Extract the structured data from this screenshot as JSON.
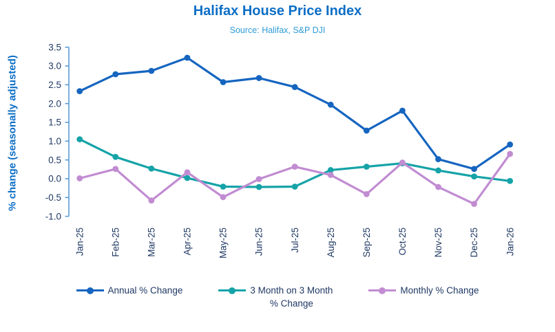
{
  "chart_data": {
    "type": "line",
    "title": "Halifax House Price Index",
    "subtitle": "Source: Halifax,  S&P DJI",
    "ylabel": "% change (seasonally adjusted)",
    "xlabel": "",
    "ylim": [
      -1.0,
      3.5
    ],
    "ytick_step": 0.5,
    "ytick_labels": [
      "3.5",
      "3.0",
      "2.5",
      "2.0",
      "1.5",
      "1.0",
      "0.5",
      "0.0",
      "-0.5",
      "-1.0"
    ],
    "grid": "off",
    "legend_position": "bottom",
    "categories": [
      "Jan-25",
      "Feb-25",
      "Mar-25",
      "Apr-25",
      "May-25",
      "Jun-25",
      "Jul-25",
      "Aug-25",
      "Sep-25",
      "Oct-25",
      "Nov-25",
      "Dec-25",
      "Jan-26"
    ],
    "series": [
      {
        "name": "Annual % Change",
        "legend_lines": [
          "Annual % Change"
        ],
        "color": "#1565c0",
        "values": [
          2.33,
          2.78,
          2.87,
          3.22,
          2.57,
          2.68,
          2.44,
          1.97,
          1.28,
          1.81,
          0.52,
          0.26,
          0.91
        ]
      },
      {
        "name": "3 Month on 3 Month % Change",
        "legend_lines": [
          "3 Month on 3 Month",
          "% Change"
        ],
        "color": "#15a3a8",
        "values": [
          1.05,
          0.58,
          0.27,
          0.02,
          -0.21,
          -0.22,
          -0.21,
          0.23,
          0.32,
          0.41,
          0.22,
          0.06,
          -0.06
        ]
      },
      {
        "name": "Monthly % Change",
        "legend_lines": [
          "Monthly % Change"
        ],
        "color": "#c18cd2",
        "values": [
          0.01,
          0.26,
          -0.58,
          0.17,
          -0.49,
          -0.01,
          0.32,
          0.1,
          -0.41,
          0.43,
          -0.22,
          -0.67,
          0.66
        ]
      }
    ],
    "colors": {
      "title": "#0c6ec6",
      "subtitle": "#2e9ad6",
      "axis_line": "#5b9bd5",
      "tick_label": "#1f3864",
      "legend_text": "#1f3864"
    }
  }
}
